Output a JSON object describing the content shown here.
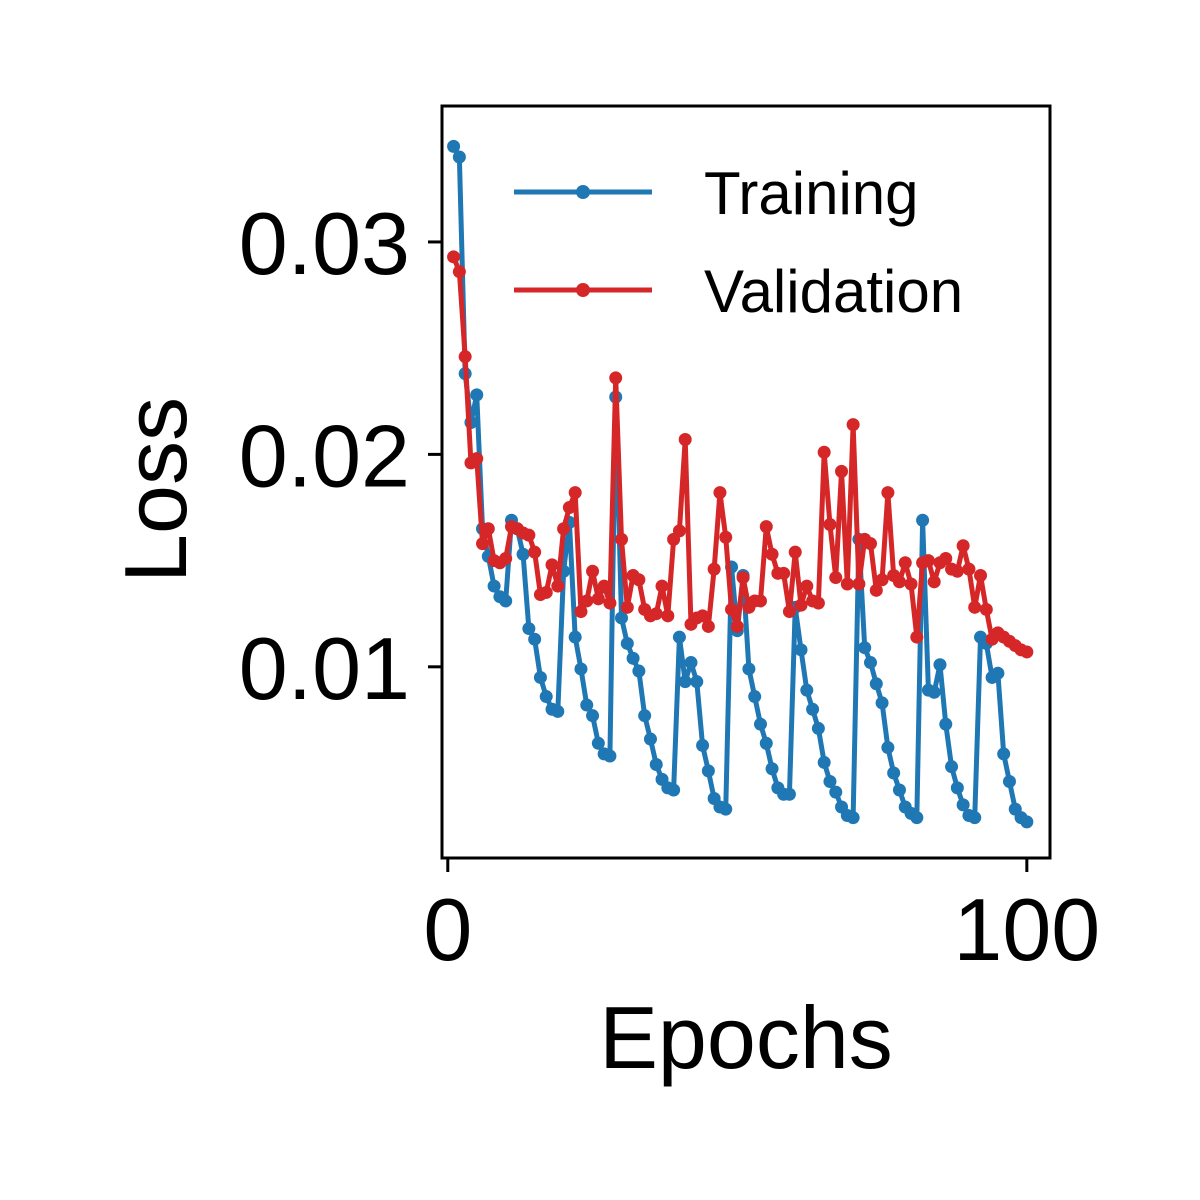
{
  "chart_data": {
    "type": "line",
    "xlabel": "Epochs",
    "ylabel": "Loss",
    "xlim": [
      -1,
      104
    ],
    "ylim": [
      0.001,
      0.0364
    ],
    "xticks": [
      0,
      100
    ],
    "xtick_labels": [
      "0",
      "100"
    ],
    "yticks": [
      0.01,
      0.02,
      0.03
    ],
    "ytick_labels": [
      "0.01",
      "0.02",
      "0.03"
    ],
    "grid": false,
    "legend_position": "top-right",
    "series": [
      {
        "name": "Training",
        "color": "#1f77b4",
        "x": [
          1,
          2,
          3,
          4,
          5,
          6,
          7,
          8,
          9,
          10,
          11,
          12,
          13,
          14,
          15,
          16,
          17,
          18,
          19,
          20,
          21,
          22,
          23,
          24,
          25,
          26,
          27,
          28,
          29,
          30,
          31,
          32,
          33,
          34,
          35,
          36,
          37,
          38,
          39,
          40,
          41,
          42,
          43,
          44,
          45,
          46,
          47,
          48,
          49,
          50,
          51,
          52,
          53,
          54,
          55,
          56,
          57,
          58,
          59,
          60,
          61,
          62,
          63,
          64,
          65,
          66,
          67,
          68,
          69,
          70,
          71,
          72,
          73,
          74,
          75,
          76,
          77,
          78,
          79,
          80,
          81,
          82,
          83,
          84,
          85,
          86,
          87,
          88,
          89,
          90,
          91,
          92,
          93,
          94,
          95,
          96,
          97,
          98,
          99,
          100
        ],
        "y": [
          0.0345,
          0.034,
          0.0238,
          0.0215,
          0.0228,
          0.0165,
          0.0152,
          0.0138,
          0.0133,
          0.0131,
          0.0169,
          0.0165,
          0.0153,
          0.0118,
          0.0113,
          0.0095,
          0.0086,
          0.008,
          0.0079,
          0.0145,
          0.0168,
          0.0114,
          0.0099,
          0.0082,
          0.0077,
          0.0064,
          0.0059,
          0.0058,
          0.0227,
          0.0123,
          0.0111,
          0.0104,
          0.0098,
          0.0077,
          0.0066,
          0.0054,
          0.0047,
          0.0043,
          0.0042,
          0.0114,
          0.0093,
          0.0102,
          0.0093,
          0.0063,
          0.0051,
          0.0038,
          0.0034,
          0.0033,
          0.0147,
          0.0117,
          0.0143,
          0.0099,
          0.0086,
          0.0073,
          0.0064,
          0.0052,
          0.0043,
          0.004,
          0.004,
          0.0128,
          0.0108,
          0.0089,
          0.008,
          0.0071,
          0.0055,
          0.0046,
          0.0041,
          0.0034,
          0.003,
          0.0029,
          0.016,
          0.0109,
          0.0102,
          0.0092,
          0.0083,
          0.0062,
          0.005,
          0.0042,
          0.0034,
          0.0031,
          0.0029,
          0.0169,
          0.0089,
          0.0088,
          0.0101,
          0.0073,
          0.0053,
          0.0043,
          0.0035,
          0.003,
          0.0029,
          0.0114,
          0.0111,
          0.0095,
          0.0097,
          0.0059,
          0.0046,
          0.0033,
          0.0029,
          0.0027
        ]
      },
      {
        "name": "Validation",
        "color": "#d62728",
        "x": [
          1,
          2,
          3,
          4,
          5,
          6,
          7,
          8,
          9,
          10,
          11,
          12,
          13,
          14,
          15,
          16,
          17,
          18,
          19,
          20,
          21,
          22,
          23,
          24,
          25,
          26,
          27,
          28,
          29,
          30,
          31,
          32,
          33,
          34,
          35,
          36,
          37,
          38,
          39,
          40,
          41,
          42,
          43,
          44,
          45,
          46,
          47,
          48,
          49,
          50,
          51,
          52,
          53,
          54,
          55,
          56,
          57,
          58,
          59,
          60,
          61,
          62,
          63,
          64,
          65,
          66,
          67,
          68,
          69,
          70,
          71,
          72,
          73,
          74,
          75,
          76,
          77,
          78,
          79,
          80,
          81,
          82,
          83,
          84,
          85,
          86,
          87,
          88,
          89,
          90,
          91,
          92,
          93,
          94,
          95,
          96,
          97,
          98,
          99,
          100
        ],
        "y": [
          0.0293,
          0.0286,
          0.0246,
          0.0196,
          0.0198,
          0.0158,
          0.0165,
          0.015,
          0.0149,
          0.0151,
          0.0166,
          0.0165,
          0.0163,
          0.0162,
          0.0154,
          0.0134,
          0.0135,
          0.0148,
          0.0138,
          0.0165,
          0.0175,
          0.0182,
          0.0126,
          0.0131,
          0.0145,
          0.0132,
          0.0138,
          0.013,
          0.0236,
          0.016,
          0.0128,
          0.0143,
          0.0141,
          0.0127,
          0.0124,
          0.0125,
          0.0138,
          0.0124,
          0.016,
          0.0164,
          0.0207,
          0.012,
          0.0123,
          0.0124,
          0.0119,
          0.0146,
          0.0182,
          0.0161,
          0.0127,
          0.0119,
          0.0142,
          0.0128,
          0.0131,
          0.0131,
          0.0166,
          0.0153,
          0.0144,
          0.0144,
          0.0126,
          0.0154,
          0.0129,
          0.0138,
          0.0131,
          0.013,
          0.0201,
          0.0167,
          0.0142,
          0.0192,
          0.0139,
          0.0214,
          0.0139,
          0.016,
          0.0158,
          0.0136,
          0.0141,
          0.0182,
          0.0143,
          0.014,
          0.0149,
          0.0139,
          0.0114,
          0.0149,
          0.015,
          0.014,
          0.0149,
          0.0151,
          0.0146,
          0.0145,
          0.0157,
          0.0146,
          0.0128,
          0.0143,
          0.0127,
          0.0113,
          0.0116,
          0.0114,
          0.0112,
          0.011,
          0.0108,
          0.0107
        ]
      }
    ]
  }
}
